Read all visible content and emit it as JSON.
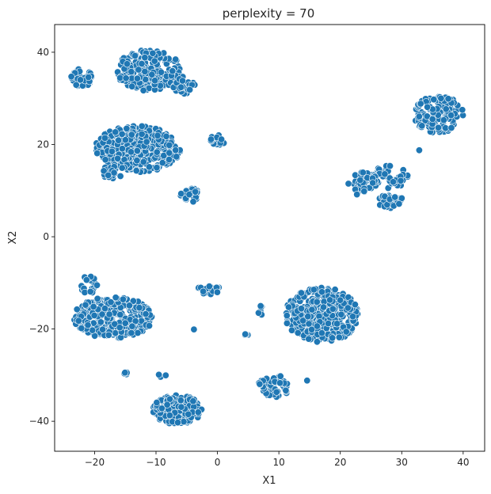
{
  "chart_data": {
    "type": "scatter",
    "title": "perplexity = 70",
    "xlabel": "X1",
    "ylabel": "X2",
    "xlim": [
      -26.5,
      43.5
    ],
    "ylim": [
      -46.5,
      46
    ],
    "xticks": [
      -20,
      -10,
      0,
      10,
      20,
      30,
      40
    ],
    "yticks": [
      -40,
      -20,
      0,
      20,
      40
    ],
    "grid": false,
    "legend": "none",
    "marker_color": "#1f77b4",
    "marker_edge_color": "#ffffff",
    "clusters": [
      {
        "cx": -11,
        "cy": 36,
        "rx": 5.5,
        "ry": 4.5,
        "n": 220
      },
      {
        "cx": -5.5,
        "cy": 33,
        "rx": 2,
        "ry": 2,
        "n": 30
      },
      {
        "cx": -22,
        "cy": 34.5,
        "rx": 1.8,
        "ry": 2,
        "n": 35
      },
      {
        "cx": -13,
        "cy": 19,
        "rx": 7,
        "ry": 5,
        "n": 330
      },
      {
        "cx": -17,
        "cy": 14,
        "rx": 2,
        "ry": 1.5,
        "n": 20
      },
      {
        "cx": 0,
        "cy": 21,
        "rx": 1.3,
        "ry": 1.3,
        "n": 14
      },
      {
        "cx": -4.5,
        "cy": 9,
        "rx": 2,
        "ry": 1.5,
        "n": 30
      },
      {
        "cx": 36,
        "cy": 26.5,
        "rx": 4,
        "ry": 4,
        "n": 120
      },
      {
        "cx": 28,
        "cy": 13,
        "rx": 3,
        "ry": 2.5,
        "n": 50
      },
      {
        "cx": 23.5,
        "cy": 11.5,
        "rx": 2.3,
        "ry": 2.5,
        "n": 50
      },
      {
        "cx": 28,
        "cy": 7.5,
        "rx": 2.5,
        "ry": 1.5,
        "n": 35
      },
      {
        "cx": -17,
        "cy": -17.5,
        "rx": 6.5,
        "ry": 4.5,
        "n": 260
      },
      {
        "cx": -21,
        "cy": -10.5,
        "rx": 1.5,
        "ry": 2,
        "n": 22
      },
      {
        "cx": 17,
        "cy": -17,
        "rx": 6,
        "ry": 6,
        "n": 380
      },
      {
        "cx": -1.5,
        "cy": -11.5,
        "rx": 2,
        "ry": 1,
        "n": 20
      },
      {
        "cx": -6.5,
        "cy": -37.5,
        "rx": 4,
        "ry": 3.2,
        "n": 190
      },
      {
        "cx": 9.5,
        "cy": -32.5,
        "rx": 2.2,
        "ry": 2.5,
        "n": 50
      },
      {
        "cx": 7,
        "cy": -31.5,
        "rx": 1,
        "ry": 0.6,
        "n": 6
      },
      {
        "cx": -15,
        "cy": -29.5,
        "rx": 0.6,
        "ry": 0.6,
        "n": 6
      },
      {
        "cx": -9,
        "cy": -30,
        "rx": 0.6,
        "ry": 0.5,
        "n": 5
      },
      {
        "cx": 7,
        "cy": -16,
        "rx": 0.4,
        "ry": 1.5,
        "n": 6
      },
      {
        "cx": 5,
        "cy": -21.2,
        "rx": 0.7,
        "ry": 0.3,
        "n": 4
      },
      {
        "cx": 33,
        "cy": 19,
        "rx": 0.3,
        "ry": 0.3,
        "n": 1
      },
      {
        "cx": -4,
        "cy": -20,
        "rx": 0.3,
        "ry": 0.3,
        "n": 1
      },
      {
        "cx": 14.5,
        "cy": -31,
        "rx": 0.3,
        "ry": 0.3,
        "n": 1
      }
    ]
  }
}
